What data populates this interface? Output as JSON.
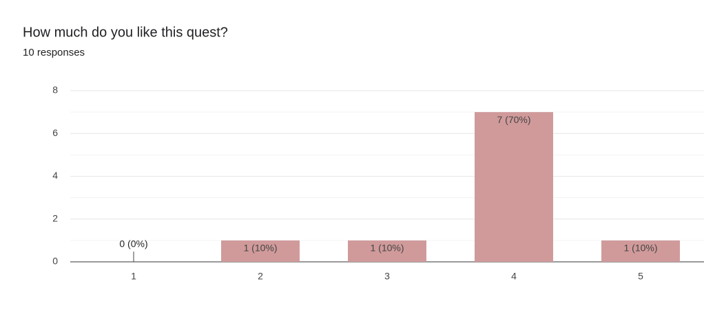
{
  "chart_data": {
    "type": "bar",
    "title": "How much do you like this quest?",
    "subtitle": "10 responses",
    "categories": [
      "1",
      "2",
      "3",
      "4",
      "5"
    ],
    "values": [
      0,
      1,
      1,
      7,
      1
    ],
    "value_labels": [
      "0 (0%)",
      "1 (10%)",
      "1 (10%)",
      "7 (70%)",
      "1 (10%)"
    ],
    "color": "#d09a9b",
    "ylim": [
      0,
      8
    ],
    "yticks": [
      0,
      2,
      4,
      6,
      8
    ],
    "minor_yticks": [
      1,
      3,
      5,
      7
    ],
    "grid": true
  }
}
